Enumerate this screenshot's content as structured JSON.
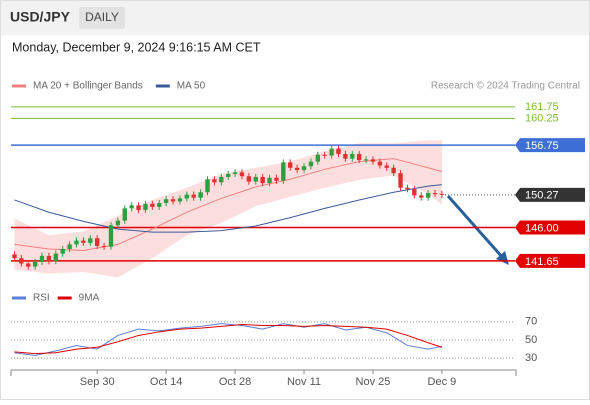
{
  "header": {
    "symbol": "USD/JPY",
    "timeframe": "DAILY",
    "timestamp": "Monday, December 9, 2024 9:16:15 AM CET",
    "watermark": "Research © 2024 Trading Central"
  },
  "chart_data": [
    {
      "type": "candlestick",
      "up_color": "#2e9e3e",
      "down_color": "#e03030",
      "xlim": [
        -0.5,
        72.6
      ],
      "ylim": [
        138.5,
        163.3
      ],
      "open": [
        142.5,
        142.0,
        141.3,
        140.9,
        141.5,
        142.3,
        141.6,
        142.6,
        143.2,
        143.8,
        144.3,
        144.0,
        144.6,
        143.6,
        143.5,
        146.3,
        146.9,
        148.5,
        148.9,
        148.3,
        149.1,
        148.7,
        149.2,
        149.7,
        149.4,
        149.8,
        150.3,
        149.9,
        150.6,
        152.3,
        151.9,
        152.6,
        153.0,
        153.2,
        152.7,
        152.0,
        152.6,
        151.8,
        152.5,
        152.1,
        154.5,
        153.8,
        153.5,
        154.0,
        154.6,
        155.5,
        155.4,
        156.3,
        155.6,
        155.0,
        155.6,
        154.8,
        154.9,
        154.6,
        154.1,
        153.8,
        153.1,
        151.2,
        151.0,
        150.2,
        149.9,
        150.5,
        150.4
      ],
      "high": [
        142.9,
        142.4,
        141.7,
        141.9,
        142.7,
        142.7,
        143.0,
        143.6,
        144.2,
        144.7,
        144.7,
        145.0,
        145.0,
        144.0,
        146.7,
        147.3,
        148.9,
        149.3,
        149.3,
        149.5,
        149.5,
        149.6,
        150.1,
        150.1,
        150.2,
        150.7,
        150.7,
        151.0,
        152.7,
        152.7,
        153.0,
        153.4,
        153.6,
        153.6,
        153.1,
        153.0,
        153.0,
        152.9,
        152.9,
        154.9,
        154.9,
        154.2,
        154.4,
        155.0,
        155.9,
        155.9,
        156.7,
        156.7,
        156.0,
        156.0,
        156.0,
        155.3,
        155.3,
        155.0,
        154.5,
        154.2,
        153.5,
        151.6,
        151.4,
        150.6,
        150.9,
        150.9,
        150.8
      ],
      "low": [
        141.6,
        140.9,
        140.5,
        140.5,
        141.1,
        141.2,
        141.2,
        142.2,
        142.8,
        143.4,
        143.6,
        143.6,
        143.2,
        143.1,
        143.1,
        145.9,
        146.5,
        148.1,
        147.9,
        147.9,
        148.3,
        148.3,
        148.8,
        149.0,
        149.0,
        149.4,
        149.5,
        149.5,
        150.2,
        151.5,
        151.5,
        152.2,
        152.6,
        152.3,
        151.6,
        151.6,
        151.4,
        151.4,
        151.7,
        151.7,
        153.4,
        153.1,
        153.1,
        153.6,
        154.2,
        155.0,
        155.0,
        155.2,
        154.6,
        154.6,
        154.4,
        154.4,
        154.2,
        153.7,
        153.4,
        152.7,
        150.8,
        150.6,
        149.8,
        149.5,
        149.5,
        150.0,
        149.87
      ],
      "close": [
        142.0,
        141.3,
        140.9,
        141.5,
        142.3,
        141.6,
        142.6,
        143.2,
        143.8,
        144.3,
        144.0,
        144.6,
        143.6,
        143.5,
        146.3,
        146.9,
        148.5,
        148.9,
        148.3,
        149.1,
        148.7,
        149.2,
        149.7,
        149.4,
        149.8,
        150.3,
        149.9,
        150.6,
        152.3,
        151.9,
        152.6,
        153.0,
        153.2,
        152.7,
        152.0,
        152.6,
        151.8,
        152.5,
        152.1,
        154.5,
        153.8,
        153.5,
        154.0,
        154.6,
        155.5,
        155.4,
        156.3,
        155.6,
        155.0,
        155.6,
        154.8,
        154.9,
        154.6,
        154.1,
        153.8,
        153.1,
        151.2,
        151.0,
        150.2,
        149.9,
        150.5,
        150.4,
        150.27
      ],
      "series": [
        {
          "name": "MA 20 + Bollinger Bands",
          "color": "#f08080",
          "band_color": "#fcd6d6",
          "x": [
            0,
            5,
            10,
            15,
            20,
            25,
            30,
            35,
            40,
            45,
            50,
            55,
            60,
            62
          ],
          "values": [
            143.8,
            143.2,
            143.0,
            143.8,
            145.8,
            148.0,
            149.8,
            151.3,
            152.3,
            153.6,
            154.6,
            155.0,
            153.8,
            153.3
          ],
          "upper": [
            147.2,
            145.0,
            145.5,
            147.5,
            149.6,
            151.2,
            153.0,
            153.8,
            154.6,
            156.0,
            157.0,
            157.0,
            157.4,
            157.4
          ],
          "lower": [
            140.5,
            140.0,
            140.2,
            139.5,
            142.0,
            145.0,
            146.6,
            148.8,
            150.0,
            151.2,
            152.2,
            152.8,
            150.4,
            149.0
          ]
        },
        {
          "name": "MA 50",
          "color": "#3a5a9a",
          "x": [
            0,
            5,
            10,
            15,
            20,
            25,
            30,
            35,
            40,
            45,
            50,
            55,
            60,
            62
          ],
          "values": [
            149.6,
            148.0,
            146.8,
            145.8,
            145.4,
            145.4,
            145.6,
            146.2,
            147.3,
            148.5,
            149.6,
            150.6,
            151.4,
            151.6
          ]
        }
      ],
      "levels": [
        {
          "value": 161.75,
          "color": "#7cbb3c",
          "style": "text"
        },
        {
          "value": 160.25,
          "color": "#7cbb3c",
          "style": "text"
        },
        {
          "value": 156.75,
          "color": "#3d6fd6",
          "style": "box"
        },
        {
          "value": 150.27,
          "color": "#333333",
          "style": "box"
        },
        {
          "value": 146,
          "label": "146.00",
          "color": "#e00000",
          "style": "box"
        },
        {
          "value": 141.65,
          "color": "#e00000",
          "style": "box"
        }
      ]
    },
    {
      "type": "line",
      "xlim": [
        -0.5,
        72.6
      ],
      "ylim": [
        17,
        83
      ],
      "yticks": [
        30,
        50,
        70
      ],
      "xticks": [
        {
          "value": 12,
          "label": "Sep 30"
        },
        {
          "value": 22,
          "label": "Oct 14"
        },
        {
          "value": 32,
          "label": "Oct 28"
        },
        {
          "value": 42,
          "label": "Nov 11"
        },
        {
          "value": 52,
          "label": "Nov 25"
        },
        {
          "value": 62,
          "label": "Dec 9"
        }
      ],
      "series": [
        {
          "name": "RSI",
          "color": "#5b7fd6",
          "x": [
            0,
            3,
            6,
            9,
            12,
            15,
            18,
            21,
            24,
            27,
            30,
            33,
            36,
            39,
            42,
            45,
            48,
            51,
            54,
            57,
            60,
            62
          ],
          "values": [
            36,
            33,
            38,
            44,
            40,
            55,
            62,
            60,
            63,
            65,
            68,
            66,
            62,
            68,
            64,
            68,
            61,
            64,
            58,
            44,
            40,
            43
          ]
        },
        {
          "name": "9MA",
          "color": "#e00000",
          "x": [
            0,
            3,
            6,
            9,
            12,
            15,
            18,
            21,
            24,
            27,
            30,
            33,
            36,
            39,
            42,
            45,
            48,
            51,
            54,
            57,
            60,
            62
          ],
          "values": [
            37,
            35,
            36,
            40,
            42,
            48,
            55,
            59,
            62,
            63,
            65,
            67,
            66,
            66,
            65,
            66,
            65,
            64,
            62,
            55,
            47,
            42
          ]
        }
      ]
    }
  ]
}
